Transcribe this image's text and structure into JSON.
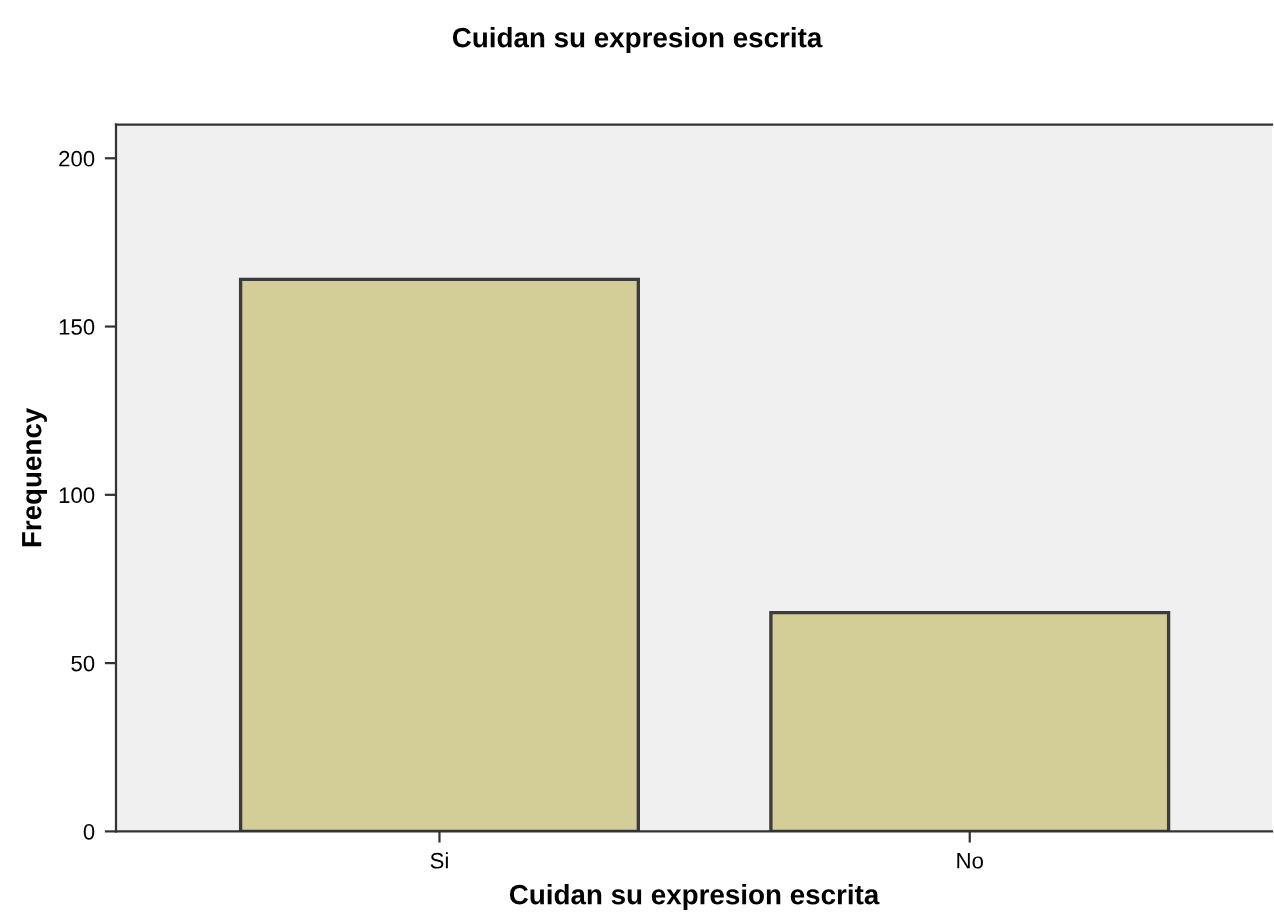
{
  "chart_data": {
    "type": "bar",
    "title": "Cuidan su expresion escrita",
    "xlabel": "Cuidan su expresion escrita",
    "ylabel": "Frequency",
    "categories": [
      "Si",
      "No"
    ],
    "values": [
      164,
      65
    ],
    "color": "#d3ce97",
    "ylim": [
      0,
      210
    ],
    "yticks": [
      0,
      50,
      100,
      150,
      200
    ],
    "grid": false
  }
}
